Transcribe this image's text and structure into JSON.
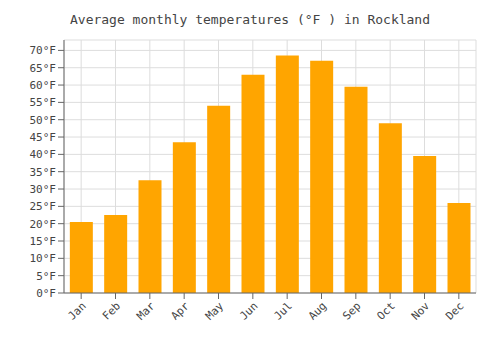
{
  "chart_data": {
    "type": "bar",
    "title": "Average monthly temperatures (°F ) in Rockland",
    "categories": [
      "Jan",
      "Feb",
      "Mar",
      "Apr",
      "May",
      "Jun",
      "Jul",
      "Aug",
      "Sep",
      "Oct",
      "Nov",
      "Dec"
    ],
    "values": [
      20.5,
      22.5,
      32.5,
      43.5,
      54.0,
      63.0,
      68.5,
      67.0,
      59.5,
      49.0,
      39.5,
      26.0
    ],
    "color": "#FFA500",
    "ylim": [
      0,
      73
    ],
    "yticks": [
      {
        "value": 0,
        "label": "0°F"
      },
      {
        "value": 5,
        "label": "5°F"
      },
      {
        "value": 10,
        "label": "10°F"
      },
      {
        "value": 15,
        "label": "15°F"
      },
      {
        "value": 20,
        "label": "20°F"
      },
      {
        "value": 25,
        "label": "25°F"
      },
      {
        "value": 30,
        "label": "30°F"
      },
      {
        "value": 35,
        "label": "35°F"
      },
      {
        "value": 40,
        "label": "40°F"
      },
      {
        "value": 45,
        "label": "45°F"
      },
      {
        "value": 50,
        "label": "50°F"
      },
      {
        "value": 55,
        "label": "55°F"
      },
      {
        "value": 60,
        "label": "60°F"
      },
      {
        "value": 65,
        "label": "65°F"
      },
      {
        "value": 70,
        "label": "70°F"
      }
    ],
    "grid": true
  }
}
